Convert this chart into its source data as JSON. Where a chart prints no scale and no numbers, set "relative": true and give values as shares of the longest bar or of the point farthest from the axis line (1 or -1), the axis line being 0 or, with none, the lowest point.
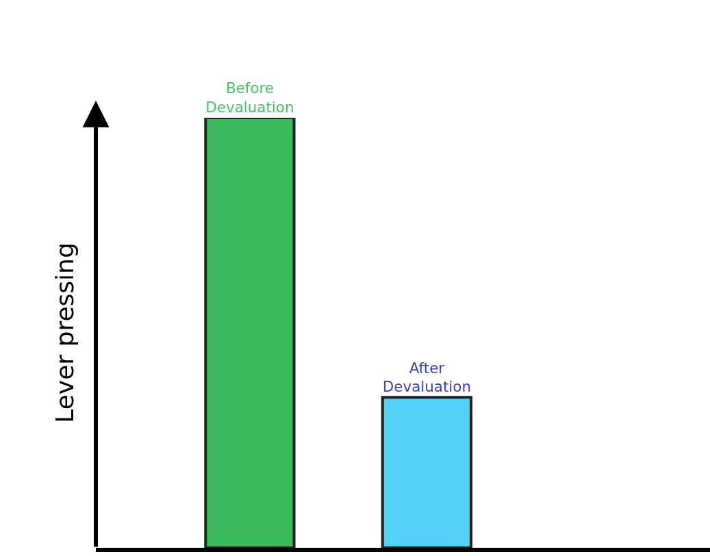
{
  "chart_data": {
    "type": "bar",
    "relative": true,
    "ylabel": "Lever pressing",
    "categories": [
      "Before Devaluation",
      "After Devaluation"
    ],
    "values": [
      1,
      0.35
    ],
    "colors": [
      "#3bbb5c",
      "#52d0f5"
    ],
    "tick_labels": false
  }
}
